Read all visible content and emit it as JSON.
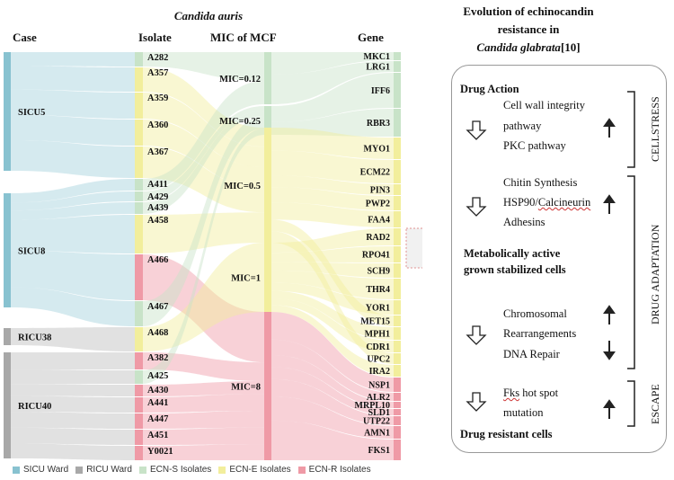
{
  "title": "Candida auris",
  "headers": {
    "case": "Case",
    "isolate": "Isolate",
    "mic": "MIC of MCF",
    "gene": "Gene"
  },
  "colors": {
    "sicu": "#88c2d0",
    "ricu": "#a8a8a8",
    "ecn_s": "#c8e3c8",
    "ecn_e": "#f2ee9c",
    "ecn_r": "#ef9aa6"
  },
  "cases": [
    {
      "label": "SICU5",
      "group": "sicu"
    },
    {
      "label": "SICU8",
      "group": "sicu"
    },
    {
      "label": "RICU38",
      "group": "ricu"
    },
    {
      "label": "RICU40",
      "group": "ricu"
    }
  ],
  "isolates": [
    {
      "label": "A282",
      "class": "ecn_s"
    },
    {
      "label": "A357",
      "class": "ecn_e"
    },
    {
      "label": "A359",
      "class": "ecn_e"
    },
    {
      "label": "A360",
      "class": "ecn_e"
    },
    {
      "label": "A367",
      "class": "ecn_e"
    },
    {
      "label": "A411",
      "class": "ecn_s"
    },
    {
      "label": "A429",
      "class": "ecn_s"
    },
    {
      "label": "A439",
      "class": "ecn_s"
    },
    {
      "label": "A458",
      "class": "ecn_e"
    },
    {
      "label": "A466",
      "class": "ecn_r"
    },
    {
      "label": "A467",
      "class": "ecn_s"
    },
    {
      "label": "A468",
      "class": "ecn_e"
    },
    {
      "label": "A382",
      "class": "ecn_r"
    },
    {
      "label": "A425",
      "class": "ecn_s"
    },
    {
      "label": "A430",
      "class": "ecn_r"
    },
    {
      "label": "A441",
      "class": "ecn_r"
    },
    {
      "label": "A447",
      "class": "ecn_r"
    },
    {
      "label": "A451",
      "class": "ecn_r"
    },
    {
      "label": "Y0021",
      "class": "ecn_r"
    }
  ],
  "mics": [
    {
      "label": "MIC=0.12",
      "class": "ecn_s"
    },
    {
      "label": "MIC=0.25",
      "class": "ecn_s"
    },
    {
      "label": "MIC=0.5",
      "class": "ecn_e"
    },
    {
      "label": "MIC=1",
      "class": "ecn_e"
    },
    {
      "label": "MIC=8",
      "class": "ecn_r"
    }
  ],
  "genes": [
    {
      "label": "MKC1",
      "class": "ecn_s"
    },
    {
      "label": "LRG1",
      "class": "ecn_s"
    },
    {
      "label": "IFF6",
      "class": "ecn_s"
    },
    {
      "label": "RBR3",
      "class": "ecn_s"
    },
    {
      "label": "MYO1",
      "class": "ecn_e"
    },
    {
      "label": "ECM22",
      "class": "ecn_e"
    },
    {
      "label": "PIN3",
      "class": "ecn_e"
    },
    {
      "label": "PWP2",
      "class": "ecn_e"
    },
    {
      "label": "FAA4",
      "class": "ecn_e"
    },
    {
      "label": "RAD2",
      "class": "ecn_e"
    },
    {
      "label": "RPO41",
      "class": "ecn_e"
    },
    {
      "label": "SCH9",
      "class": "ecn_e"
    },
    {
      "label": "THR4",
      "class": "ecn_e"
    },
    {
      "label": "YOR1",
      "class": "ecn_e"
    },
    {
      "label": "MET15",
      "class": "ecn_e"
    },
    {
      "label": "MPH1",
      "class": "ecn_e"
    },
    {
      "label": "CDR1",
      "class": "ecn_e"
    },
    {
      "label": "UPC2",
      "class": "ecn_e"
    },
    {
      "label": "IRA2",
      "class": "ecn_e"
    },
    {
      "label": "NSP1",
      "class": "ecn_r"
    },
    {
      "label": "ALR2",
      "class": "ecn_r"
    },
    {
      "label": "MRPL10",
      "class": "ecn_r"
    },
    {
      "label": "SLD1",
      "class": "ecn_r"
    },
    {
      "label": "UTP22",
      "class": "ecn_r"
    },
    {
      "label": "AMN1",
      "class": "ecn_r"
    },
    {
      "label": "FKS1",
      "class": "ecn_r"
    }
  ],
  "legend": [
    {
      "label": "SICU Ward",
      "color_key": "sicu"
    },
    {
      "label": "RICU Ward",
      "color_key": "ricu"
    },
    {
      "label": "ECN-S Isolates",
      "color_key": "ecn_s"
    },
    {
      "label": "ECN-E Isolates",
      "color_key": "ecn_e"
    },
    {
      "label": "ECN-R Isolates",
      "color_key": "ecn_r"
    }
  ],
  "panel": {
    "title_line1": "Evolution of echinocandin",
    "title_line2": "resistance in",
    "title_italic": "Candida glabrata",
    "title_ref": "[10]",
    "drug_action": "Drug Action",
    "cell_wall_1": "Cell wall integrity",
    "cell_wall_2": "pathway",
    "pkc": "PKC pathway",
    "chitin": "Chitin Synthesis",
    "hsp90": "HSP90/",
    "calcineurin": "Calcineurin",
    "adhesins": "Adhesins",
    "metab_1": "Metabolically active",
    "metab_2": "grown stabilized cells",
    "chromosomal": "Chromosomal",
    "rearrangements": "Rearrangements",
    "dna_repair": "DNA Repair",
    "fks_1": "Fks",
    "fks_2": " hot spot",
    "mutation": "mutation",
    "resistant": "Drug resistant cells",
    "side_cellstress": "CELLSTRESS",
    "side_adaptation": "DRUG ADAPTATION",
    "side_escape": "ESCAPE"
  }
}
